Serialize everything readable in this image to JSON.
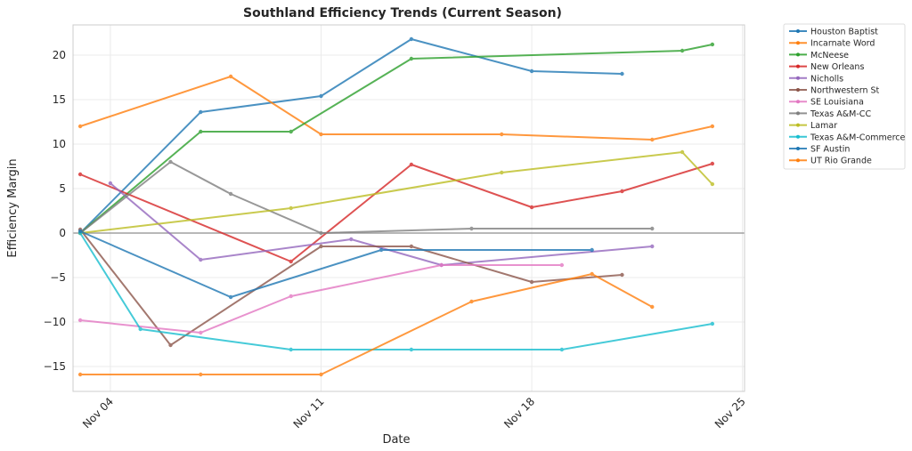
{
  "chart_data": {
    "type": "line",
    "title": "Southland Efficiency Trends (Current Season)",
    "xlabel": "Date",
    "ylabel": "Efficiency Margin",
    "x_unit": "days since Nov 03",
    "xlim": [
      -0.24,
      22.07
    ],
    "ylim": [
      -17.8,
      23.4
    ],
    "grid": true,
    "legend_position": "outside-top-right",
    "reference_line_y": 0,
    "x_ticks": [
      {
        "label": "Nov 04",
        "value": 1
      },
      {
        "label": "Nov 11",
        "value": 8
      },
      {
        "label": "Nov 18",
        "value": 15
      },
      {
        "label": "Nov 25",
        "value": 22
      }
    ],
    "y_ticks": [
      {
        "label": "−15",
        "value": -15
      },
      {
        "label": "−10",
        "value": -10
      },
      {
        "label": "−5",
        "value": -5
      },
      {
        "label": "0",
        "value": 0
      },
      {
        "label": "5",
        "value": 5
      },
      {
        "label": "10",
        "value": 10
      },
      {
        "label": "15",
        "value": 15
      },
      {
        "label": "20",
        "value": 20
      }
    ],
    "series": [
      {
        "name": "Houston Baptist",
        "color": "#1f77b4",
        "x": [
          0,
          4,
          8,
          11,
          15,
          18
        ],
        "y": [
          0,
          13.6,
          15.4,
          21.8,
          18.2,
          17.9
        ]
      },
      {
        "name": "Incarnate Word",
        "color": "#ff7f0e",
        "x": [
          0,
          5,
          8,
          14,
          19,
          21
        ],
        "y": [
          12.0,
          17.6,
          11.1,
          11.1,
          10.5,
          12.0
        ]
      },
      {
        "name": "McNeese",
        "color": "#2ca02c",
        "x": [
          0,
          4,
          7,
          11,
          20,
          21
        ],
        "y": [
          0,
          11.4,
          11.4,
          19.6,
          20.5,
          21.2
        ]
      },
      {
        "name": "New Orleans",
        "color": "#d62728",
        "x": [
          0,
          7,
          11,
          15,
          18,
          21
        ],
        "y": [
          6.6,
          -3.2,
          7.7,
          2.9,
          4.7,
          7.8
        ]
      },
      {
        "name": "Nicholls",
        "color": "#9467bd",
        "x": [
          1,
          4,
          9,
          12,
          19
        ],
        "y": [
          5.6,
          -3.0,
          -0.7,
          -3.6,
          -1.5
        ]
      },
      {
        "name": "Northwestern St",
        "color": "#8c564b",
        "x": [
          0,
          3,
          8,
          11,
          15,
          18
        ],
        "y": [
          0.4,
          -12.6,
          -1.5,
          -1.5,
          -5.5,
          -4.7
        ]
      },
      {
        "name": "SE Louisiana",
        "color": "#e377c2",
        "x": [
          0,
          4,
          7,
          12,
          16
        ],
        "y": [
          -9.8,
          -11.2,
          -7.1,
          -3.6,
          -3.6
        ]
      },
      {
        "name": "Texas A&M-CC",
        "color": "#7f7f7f",
        "x": [
          0,
          3,
          5,
          8,
          13,
          19
        ],
        "y": [
          0,
          8.0,
          4.4,
          0,
          0.5,
          0.5
        ]
      },
      {
        "name": "Lamar",
        "color": "#bcbd22",
        "x": [
          0,
          7,
          14,
          20,
          21
        ],
        "y": [
          0,
          2.8,
          6.8,
          9.1,
          5.5
        ]
      },
      {
        "name": "Texas A&M-Commerce",
        "color": "#17becf",
        "x": [
          0,
          2,
          7,
          11,
          16,
          21
        ],
        "y": [
          0,
          -10.8,
          -13.1,
          -13.1,
          -13.1,
          -10.2
        ]
      },
      {
        "name": "SF Austin",
        "color": "#1f77b4",
        "x": [
          0,
          5,
          10,
          17
        ],
        "y": [
          0.2,
          -7.2,
          -1.9,
          -1.9
        ]
      },
      {
        "name": "UT Rio Grande",
        "color": "#ff7f0e",
        "x": [
          0,
          4,
          8,
          13,
          17,
          19
        ],
        "y": [
          -15.9,
          -15.9,
          -15.9,
          -7.7,
          -4.6,
          -8.3
        ]
      }
    ]
  }
}
